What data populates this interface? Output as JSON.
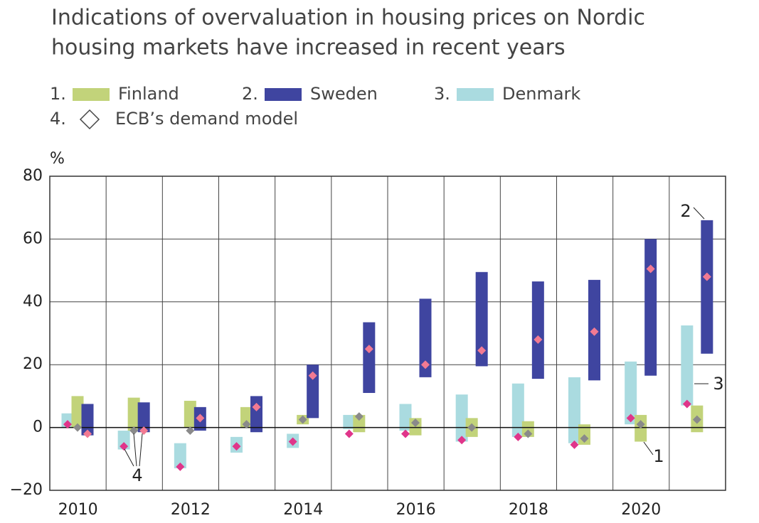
{
  "chart_data": {
    "type": "range_bar",
    "title": [
      "Indications of overvaluation in housing prices on Nordic",
      "housing markets have increased in recent years"
    ],
    "y_unit": "%",
    "categories": [
      "2010",
      null,
      "2012",
      null,
      "2014",
      null,
      "2016",
      null,
      "2018",
      null,
      "2020",
      null
    ],
    "series": [
      {
        "number": "3.",
        "name": "Denmark",
        "color": "#aadbe0",
        "model_color": "#e0358a",
        "low": [
          0,
          -7,
          -13,
          -8,
          -6.5,
          -0.5,
          -1,
          -4.5,
          -3,
          -5,
          1,
          7
        ],
        "high": [
          4.5,
          -1,
          -5,
          -3,
          -2,
          4,
          7.5,
          10.5,
          14,
          16,
          21,
          32.5
        ],
        "model": [
          1,
          -6,
          -12.5,
          -6,
          -4.5,
          -2,
          -2,
          -4,
          -3,
          -5.5,
          3,
          7.5
        ]
      },
      {
        "number": "1.",
        "name": "Finland",
        "color": "#c2d37a",
        "model_color": "#8a8a8a",
        "low": [
          0,
          -1,
          0,
          0,
          1,
          -1.5,
          -2.5,
          -3,
          -3,
          -5.5,
          -4.5,
          -1.5
        ],
        "high": [
          10,
          9.5,
          8.5,
          6.5,
          4,
          4,
          3,
          3,
          2,
          1,
          4,
          7
        ],
        "model": [
          0,
          -1,
          -1,
          1,
          2.5,
          3.5,
          1.5,
          0,
          -2,
          -3.5,
          1,
          2.5
        ]
      },
      {
        "number": "2.",
        "name": "Sweden",
        "color": "#3f45a0",
        "model_color": "#f27a92",
        "low": [
          -2.5,
          -1.5,
          -1,
          -1.5,
          3,
          11,
          16,
          19.5,
          15.5,
          15,
          16.5,
          23.5
        ],
        "high": [
          7.5,
          8,
          6.5,
          10,
          20,
          33.5,
          41,
          49.5,
          46.5,
          47,
          60,
          66
        ],
        "model": [
          -2,
          -1,
          3,
          6.5,
          16.5,
          25,
          20,
          24.5,
          28,
          30.5,
          50.5,
          48
        ]
      }
    ],
    "model_legend": {
      "number": "4.",
      "name": "ECB’s demand model"
    },
    "annotations": [
      "4",
      "1",
      "2",
      "3"
    ],
    "ylim": [
      -20,
      80
    ],
    "yticks": [
      {
        "value": -20,
        "label": "−20"
      },
      0,
      20,
      40,
      60,
      80
    ],
    "grid": true
  }
}
